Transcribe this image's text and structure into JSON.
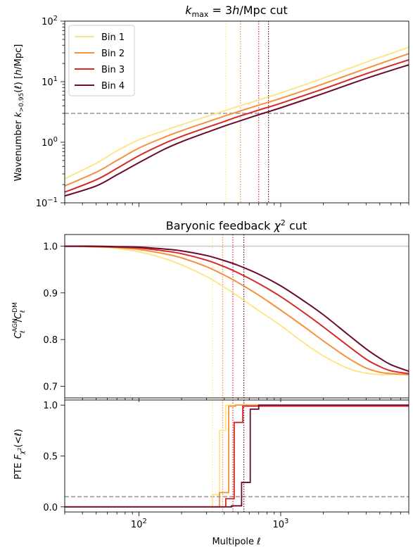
{
  "colors": {
    "bin1": "#fde68a",
    "bin2": "#f4913d",
    "bin3": "#d62a2a",
    "bin4": "#6b0a2e",
    "ref_dash": "#999999",
    "ref_solid": "#c8c8c8"
  },
  "chart_data": [
    {
      "type": "line",
      "title": "k_max = 3h/Mpc cut",
      "title_parts": {
        "k": "k",
        "sub": "max",
        "rest": " = 3",
        "h": "h",
        "tail": "/Mpc cut"
      },
      "ylabel": "Wavenumber k_{>0.95}(ℓ) [h/Mpc]",
      "ylabel_parts": {
        "a": "Wavenumber ",
        "k": "k",
        "sub": ">0.95",
        "b": "(ℓ) [",
        "h": "h",
        "c": "/Mpc]"
      },
      "xscale": "log",
      "yscale": "log",
      "xlim": [
        30,
        8000
      ],
      "ylim": [
        0.1,
        100
      ],
      "yticks": [
        {
          "v": 0.1,
          "m": "10",
          "e": "−1"
        },
        {
          "v": 1,
          "m": "10",
          "e": "0"
        },
        {
          "v": 10,
          "m": "10",
          "e": "1"
        },
        {
          "v": 100,
          "m": "10",
          "e": "2"
        }
      ],
      "hline": {
        "y": 3,
        "style": "dashed"
      },
      "vlines": [
        {
          "x": 410,
          "series": 0
        },
        {
          "x": 520,
          "series": 1
        },
        {
          "x": 700,
          "series": 2
        },
        {
          "x": 820,
          "series": 3
        }
      ],
      "legend": {
        "placement": "top-left",
        "entries": [
          "Bin 1",
          "Bin 2",
          "Bin 3",
          "Bin 4"
        ]
      },
      "x": [
        30,
        50,
        70,
        100,
        150,
        200,
        300,
        400,
        500,
        700,
        1000,
        2000,
        4000,
        8000
      ],
      "series": [
        {
          "name": "Bin 1",
          "values": [
            0.25,
            0.45,
            0.72,
            1.1,
            1.55,
            1.95,
            2.65,
            3.3,
            3.9,
            5.0,
            6.5,
            11.5,
            21,
            37
          ]
        },
        {
          "name": "Bin 2",
          "values": [
            0.19,
            0.32,
            0.5,
            0.8,
            1.2,
            1.55,
            2.15,
            2.7,
            3.2,
            4.1,
            5.3,
            9.2,
            16.5,
            29
          ]
        },
        {
          "name": "Bin 3",
          "values": [
            0.15,
            0.24,
            0.37,
            0.6,
            0.95,
            1.25,
            1.75,
            2.2,
            2.65,
            3.4,
            4.4,
            7.6,
            13.5,
            23
          ]
        },
        {
          "name": "Bin 4",
          "values": [
            0.13,
            0.19,
            0.29,
            0.46,
            0.76,
            1.02,
            1.45,
            1.85,
            2.2,
            2.85,
            3.7,
            6.4,
            11.3,
            19
          ]
        }
      ]
    },
    {
      "type": "line",
      "title": "Baryonic feedback χ² cut",
      "title_parts": {
        "a": "Baryonic feedback ",
        "chi": "χ",
        "sup": "2",
        "b": " cut"
      },
      "ylabel": "C_ℓ^AGN / C_ℓ^DM",
      "xscale": "log",
      "yscale": "linear",
      "xlim": [
        30,
        8000
      ],
      "ylim": [
        0.675,
        1.025
      ],
      "yticks": [
        {
          "v": 0.7,
          "t": "0.7"
        },
        {
          "v": 0.8,
          "t": "0.8"
        },
        {
          "v": 0.9,
          "t": "0.9"
        },
        {
          "v": 1.0,
          "t": "1.0"
        }
      ],
      "hline": {
        "y": 1.0,
        "style": "solid"
      },
      "vlines": [
        {
          "x": 330,
          "series": 0
        },
        {
          "x": 390,
          "series": 1
        },
        {
          "x": 460,
          "series": 2
        },
        {
          "x": 550,
          "series": 3
        }
      ],
      "x": [
        30,
        50,
        70,
        100,
        150,
        200,
        300,
        400,
        500,
        700,
        1000,
        1500,
        2000,
        3000,
        4000,
        5000,
        6000,
        8000
      ],
      "series": [
        {
          "name": "Bin 1",
          "values": [
            1.0,
            0.998,
            0.995,
            0.988,
            0.974,
            0.96,
            0.935,
            0.912,
            0.893,
            0.862,
            0.83,
            0.79,
            0.765,
            0.738,
            0.728,
            0.725,
            0.725,
            0.725
          ]
        },
        {
          "name": "Bin 2",
          "values": [
            1.0,
            0.999,
            0.997,
            0.993,
            0.984,
            0.975,
            0.956,
            0.938,
            0.922,
            0.895,
            0.863,
            0.825,
            0.797,
            0.76,
            0.739,
            0.73,
            0.727,
            0.725
          ]
        },
        {
          "name": "Bin 3",
          "values": [
            1.0,
            0.999,
            0.998,
            0.996,
            0.99,
            0.984,
            0.97,
            0.956,
            0.943,
            0.92,
            0.892,
            0.855,
            0.827,
            0.786,
            0.758,
            0.742,
            0.733,
            0.727
          ]
        },
        {
          "name": "Bin 4",
          "values": [
            1.0,
            1.0,
            0.999,
            0.998,
            0.994,
            0.99,
            0.98,
            0.969,
            0.959,
            0.94,
            0.915,
            0.88,
            0.853,
            0.81,
            0.78,
            0.76,
            0.746,
            0.732
          ]
        }
      ]
    },
    {
      "type": "line",
      "ylabel": "PTE F_χ²(<ℓ)",
      "xlabel": "Multipole ℓ",
      "xscale": "log",
      "yscale": "linear",
      "xlim": [
        30,
        8000
      ],
      "ylim": [
        -0.05,
        1.05
      ],
      "xticks": [
        {
          "v": 100,
          "m": "10",
          "e": "2"
        },
        {
          "v": 1000,
          "m": "10",
          "e": "3"
        }
      ],
      "yticks": [
        {
          "v": 0.0,
          "t": "0.0"
        },
        {
          "v": 0.5,
          "t": "0.5"
        },
        {
          "v": 1.0,
          "t": "1.0"
        }
      ],
      "hline": {
        "y": 0.1,
        "style": "dashed"
      },
      "vlines": [
        {
          "x": 330,
          "series": 0
        },
        {
          "x": 390,
          "series": 1
        },
        {
          "x": 460,
          "series": 2
        },
        {
          "x": 550,
          "series": 3
        }
      ],
      "step_series": [
        {
          "name": "Bin 1",
          "steps": [
            [
              30,
              0.0
            ],
            [
              330,
              0.12
            ],
            [
              370,
              0.75
            ],
            [
              410,
              1.0
            ],
            [
              8000,
              1.0
            ]
          ]
        },
        {
          "name": "Bin 2",
          "steps": [
            [
              30,
              0.0
            ],
            [
              370,
              0.14
            ],
            [
              430,
              0.99
            ],
            [
              480,
              1.0
            ],
            [
              8000,
              1.0
            ]
          ]
        },
        {
          "name": "Bin 3",
          "steps": [
            [
              30,
              0.0
            ],
            [
              410,
              0.08
            ],
            [
              470,
              0.83
            ],
            [
              540,
              0.99
            ],
            [
              8000,
              1.0
            ]
          ]
        },
        {
          "name": "Bin 4",
          "steps": [
            [
              30,
              0.0
            ],
            [
              450,
              0.01
            ],
            [
              530,
              0.24
            ],
            [
              610,
              0.96
            ],
            [
              700,
              1.0
            ],
            [
              8000,
              1.0
            ]
          ]
        }
      ]
    }
  ]
}
